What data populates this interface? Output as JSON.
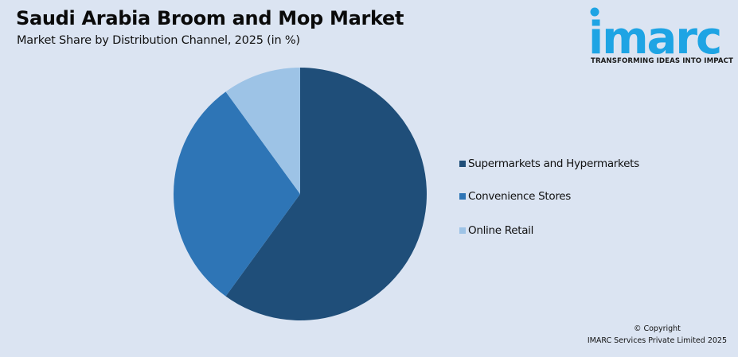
{
  "header": {
    "title": "Saudi Arabia Broom and Mop Market",
    "subtitle": "Market Share by Distribution Channel, 2025 (in %)"
  },
  "logo": {
    "brand": "imarc",
    "tagline": "TRANSFORMING IDEAS INTO IMPACT",
    "color": "#1ea4e4"
  },
  "footer": {
    "copyright_line1": "© Copyright",
    "copyright_line2": "IMARC Services Private Limited 2025"
  },
  "chart_data": {
    "type": "pie",
    "title": "Saudi Arabia Broom and Mop Market",
    "subtitle": "Market Share by Distribution Channel, 2025 (in %)",
    "categories": [
      "Supermarkets and Hypermarkets",
      "Convenience Stores",
      "Online Retail"
    ],
    "values": [
      60,
      30,
      10
    ],
    "colors": [
      "#1f4e79",
      "#2e75b6",
      "#9dc3e6"
    ],
    "start_angle_deg": 0,
    "direction": "clockwise",
    "data_labels": false,
    "legend_position": "right"
  }
}
